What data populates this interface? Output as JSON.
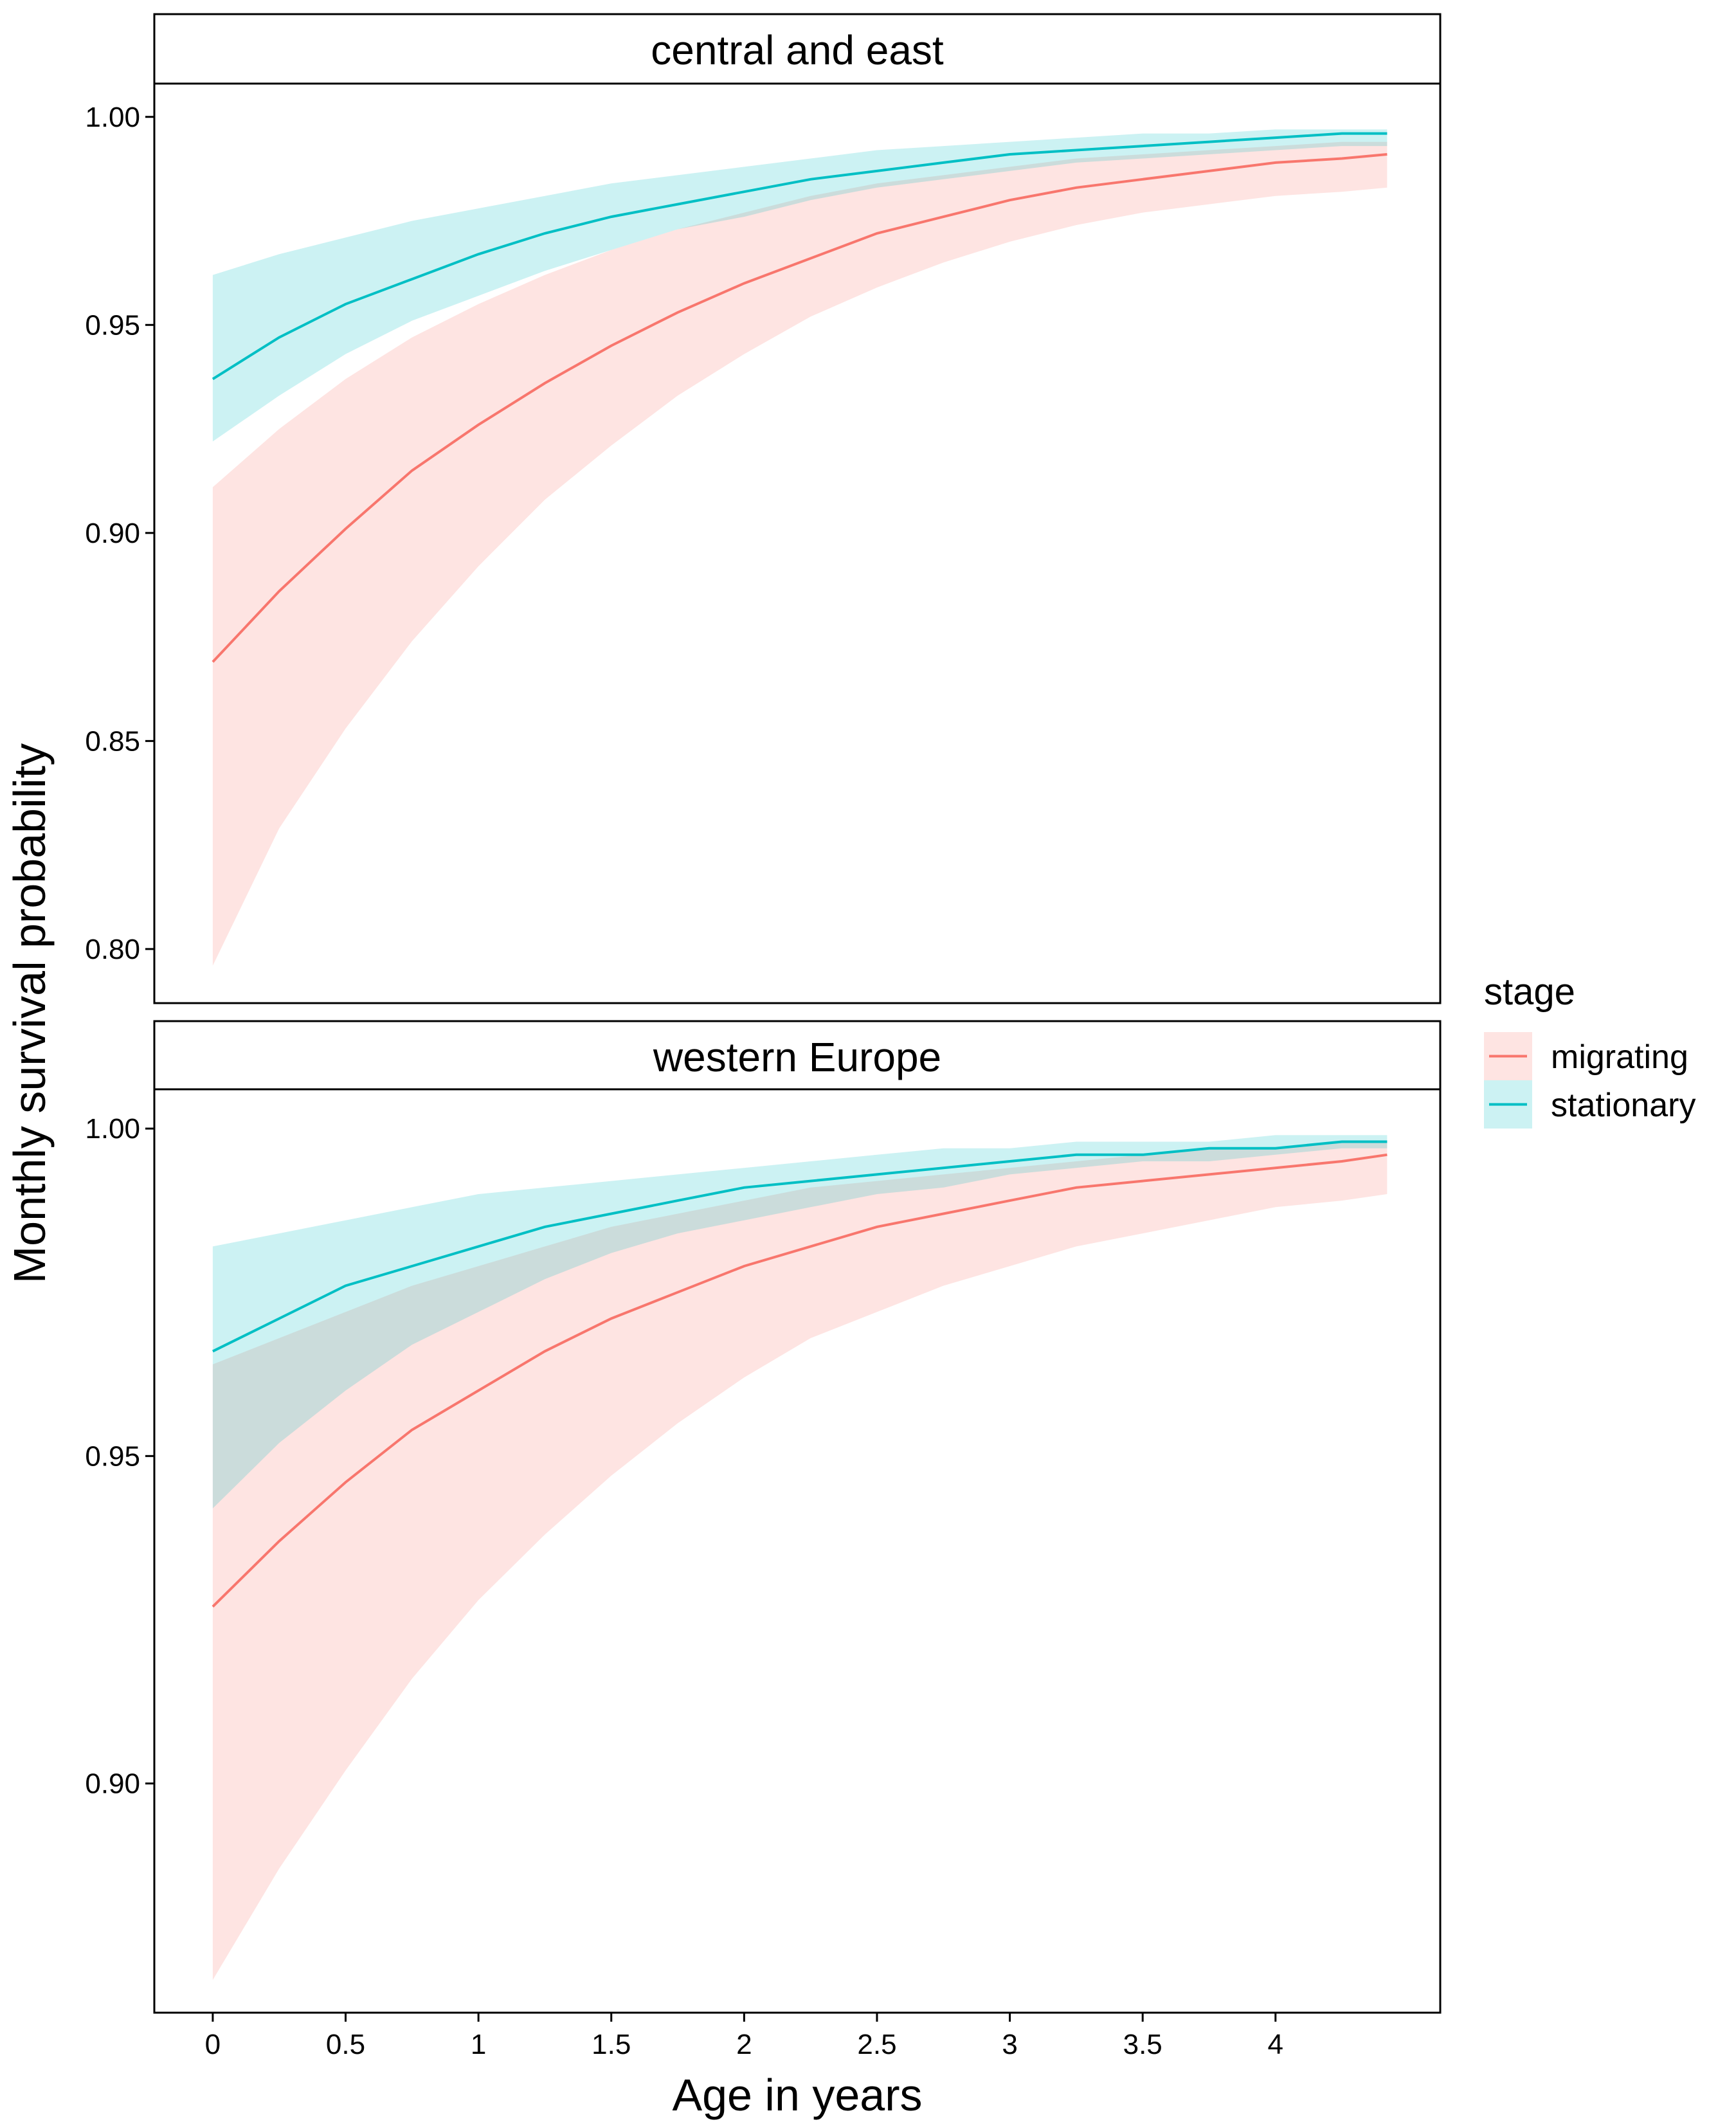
{
  "chart_data": {
    "type": "area",
    "xlabel": "Age in years",
    "ylabel": "Monthly survival probability",
    "x_ticks": [
      "0",
      "0.5",
      "1",
      "1.5",
      "2",
      "2.5",
      "3",
      "3.5",
      "4"
    ],
    "x_tick_values": [
      0,
      0.5,
      1,
      1.5,
      2,
      2.5,
      3,
      3.5,
      4
    ],
    "xlim": [
      -0.22,
      4.62
    ],
    "grid": false,
    "legend": {
      "title": "stage",
      "placement": "right",
      "entries": [
        {
          "name": "migrating",
          "color": "#F8766D",
          "fill": "#F8766D"
        },
        {
          "name": "stationary",
          "color": "#00BFC4",
          "fill": "#00BFC4"
        }
      ]
    },
    "panels": [
      {
        "strip": "central and east",
        "ylim": [
          0.787,
          1.008
        ],
        "y_ticks": [
          "0.80",
          "0.85",
          "0.90",
          "0.95",
          "1.00"
        ],
        "y_tick_values": [
          0.8,
          0.85,
          0.9,
          0.95,
          1.0
        ],
        "x": [
          0,
          0.25,
          0.5,
          0.75,
          1,
          1.25,
          1.5,
          1.75,
          2,
          2.25,
          2.5,
          2.75,
          3,
          3.25,
          3.5,
          3.75,
          4,
          4.25,
          4.42
        ],
        "series": [
          {
            "name": "migrating",
            "mean": [
              0.869,
              0.886,
              0.901,
              0.915,
              0.926,
              0.936,
              0.945,
              0.953,
              0.96,
              0.966,
              0.972,
              0.976,
              0.98,
              0.983,
              0.985,
              0.987,
              0.989,
              0.99,
              0.991
            ],
            "lower": [
              0.796,
              0.829,
              0.853,
              0.874,
              0.892,
              0.908,
              0.921,
              0.933,
              0.943,
              0.952,
              0.959,
              0.965,
              0.97,
              0.974,
              0.977,
              0.979,
              0.981,
              0.982,
              0.983
            ],
            "upper": [
              0.911,
              0.925,
              0.937,
              0.947,
              0.955,
              0.962,
              0.968,
              0.973,
              0.977,
              0.981,
              0.984,
              0.986,
              0.988,
              0.99,
              0.991,
              0.992,
              0.993,
              0.994,
              0.994
            ]
          },
          {
            "name": "stationary",
            "mean": [
              0.937,
              0.947,
              0.955,
              0.961,
              0.967,
              0.972,
              0.976,
              0.979,
              0.982,
              0.985,
              0.987,
              0.989,
              0.991,
              0.992,
              0.993,
              0.994,
              0.995,
              0.996,
              0.996
            ],
            "lower": [
              0.922,
              0.933,
              0.943,
              0.951,
              0.957,
              0.963,
              0.968,
              0.973,
              0.976,
              0.98,
              0.983,
              0.985,
              0.987,
              0.989,
              0.99,
              0.991,
              0.992,
              0.993,
              0.993
            ],
            "upper": [
              0.962,
              0.967,
              0.971,
              0.975,
              0.978,
              0.981,
              0.984,
              0.986,
              0.988,
              0.99,
              0.992,
              0.993,
              0.994,
              0.995,
              0.996,
              0.996,
              0.997,
              0.997,
              0.997
            ]
          }
        ]
      },
      {
        "strip": "western Europe",
        "ylim": [
          0.865,
          1.006
        ],
        "y_ticks": [
          "0.90",
          "0.95",
          "1.00"
        ],
        "y_tick_values": [
          0.9,
          0.95,
          1.0
        ],
        "x": [
          0,
          0.25,
          0.5,
          0.75,
          1,
          1.25,
          1.5,
          1.75,
          2,
          2.25,
          2.5,
          2.75,
          3,
          3.25,
          3.5,
          3.75,
          4,
          4.25,
          4.42
        ],
        "series": [
          {
            "name": "migrating",
            "mean": [
              0.927,
              0.937,
              0.946,
              0.954,
              0.96,
              0.966,
              0.971,
              0.975,
              0.979,
              0.982,
              0.985,
              0.987,
              0.989,
              0.991,
              0.992,
              0.993,
              0.994,
              0.995,
              0.996
            ],
            "lower": [
              0.87,
              0.887,
              0.902,
              0.916,
              0.928,
              0.938,
              0.947,
              0.955,
              0.962,
              0.968,
              0.972,
              0.976,
              0.979,
              0.982,
              0.984,
              0.986,
              0.988,
              0.989,
              0.99
            ],
            "upper": [
              0.964,
              0.968,
              0.972,
              0.976,
              0.979,
              0.982,
              0.985,
              0.987,
              0.989,
              0.991,
              0.992,
              0.993,
              0.994,
              0.995,
              0.996,
              0.997,
              0.997,
              0.998,
              0.998
            ]
          },
          {
            "name": "stationary",
            "mean": [
              0.966,
              0.971,
              0.976,
              0.979,
              0.982,
              0.985,
              0.987,
              0.989,
              0.991,
              0.992,
              0.993,
              0.994,
              0.995,
              0.996,
              0.996,
              0.997,
              0.997,
              0.998,
              0.998
            ],
            "lower": [
              0.942,
              0.952,
              0.96,
              0.967,
              0.972,
              0.977,
              0.981,
              0.984,
              0.986,
              0.988,
              0.99,
              0.991,
              0.993,
              0.994,
              0.995,
              0.995,
              0.996,
              0.997,
              0.997
            ],
            "upper": [
              0.982,
              0.984,
              0.986,
              0.988,
              0.99,
              0.991,
              0.992,
              0.993,
              0.994,
              0.995,
              0.996,
              0.997,
              0.997,
              0.998,
              0.998,
              0.998,
              0.999,
              0.999,
              0.999
            ]
          }
        ]
      }
    ]
  }
}
